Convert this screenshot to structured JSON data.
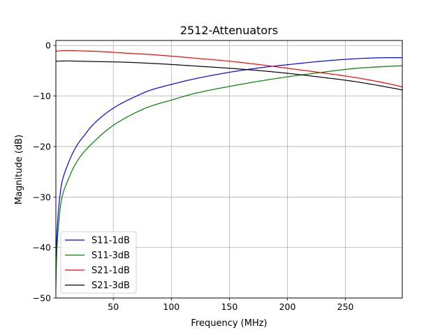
{
  "chart_data": {
    "type": "line",
    "title": "2512-Attenuators",
    "xlabel": "Frequency (MHz)",
    "ylabel": "Magnitude (dB)",
    "xlim": [
      0.5,
      299
    ],
    "ylim": [
      -50,
      1
    ],
    "xticks": [
      50,
      100,
      150,
      200,
      250
    ],
    "yticks": [
      0,
      -10,
      -20,
      -30,
      -40,
      -50
    ],
    "grid": true,
    "legend_position": "lower-left",
    "series": [
      {
        "name": "S11-1dB",
        "color": "#0000ff",
        "x": [
          0.5,
          1,
          2,
          3,
          5,
          7,
          10,
          15,
          20,
          25,
          30,
          40,
          50,
          60,
          70,
          80,
          100,
          120,
          150,
          180,
          200,
          230,
          260,
          290,
          299
        ],
        "y": [
          -45,
          -40,
          -35,
          -32,
          -28,
          -26,
          -24,
          -21.3,
          -19.3,
          -17.8,
          -16.3,
          -14.1,
          -12.4,
          -11.1,
          -10,
          -9,
          -7.7,
          -6.6,
          -5.3,
          -4.3,
          -3.8,
          -3.1,
          -2.6,
          -2.4,
          -2.4
        ]
      },
      {
        "name": "S11-3dB",
        "color": "#008000",
        "x": [
          0.5,
          1,
          2,
          3,
          5,
          7,
          10,
          15,
          20,
          25,
          30,
          40,
          50,
          60,
          70,
          80,
          100,
          120,
          150,
          180,
          200,
          230,
          260,
          290,
          299
        ],
        "y": [
          -48,
          -43,
          -38,
          -35,
          -31,
          -29,
          -27.2,
          -24.5,
          -22.5,
          -21,
          -19.8,
          -17.6,
          -15.8,
          -14.4,
          -13.2,
          -12.2,
          -10.8,
          -9.5,
          -8.1,
          -6.9,
          -6.2,
          -5.3,
          -4.5,
          -4.1,
          -4
        ]
      },
      {
        "name": "S21-1dB",
        "color": "#ff0000",
        "x": [
          0.5,
          10,
          20,
          40,
          60,
          80,
          100,
          120,
          150,
          180,
          200,
          230,
          260,
          290,
          299
        ],
        "y": [
          -1.1,
          -1,
          -1.05,
          -1.2,
          -1.5,
          -1.75,
          -2.1,
          -2.5,
          -3.1,
          -3.9,
          -4.5,
          -5.4,
          -6.4,
          -7.7,
          -8.2
        ]
      },
      {
        "name": "S21-3dB",
        "color": "#000000",
        "x": [
          0.5,
          10,
          20,
          40,
          60,
          80,
          100,
          120,
          150,
          180,
          200,
          230,
          260,
          290,
          299
        ],
        "y": [
          -3.1,
          -3.05,
          -3.1,
          -3.2,
          -3.3,
          -3.5,
          -3.75,
          -4.05,
          -4.5,
          -5.05,
          -5.5,
          -6.3,
          -7.2,
          -8.4,
          -8.8
        ]
      }
    ]
  }
}
